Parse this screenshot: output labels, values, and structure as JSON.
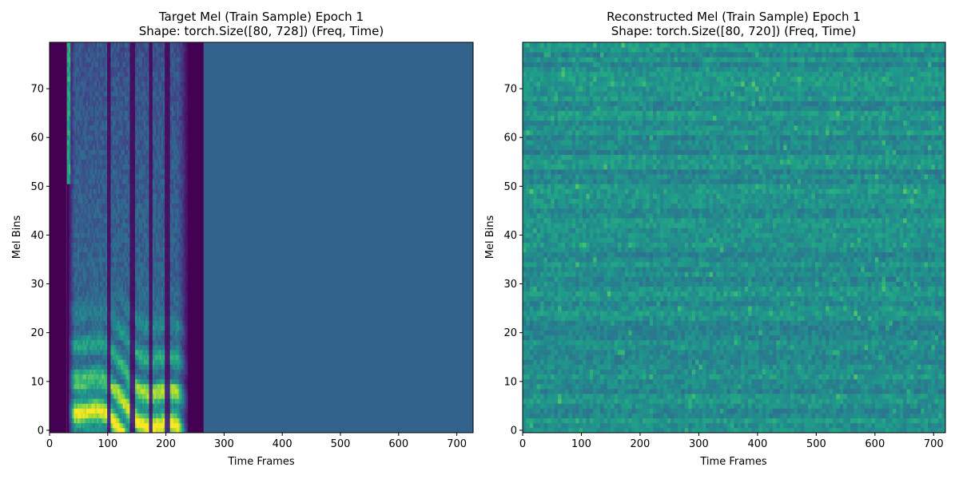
{
  "chart_data": [
    {
      "type": "heatmap",
      "title": "Target Mel (Train Sample) Epoch 1",
      "subtitle": "Shape: torch.Size([80, 728]) (Freq, Time)",
      "xlabel": "Time Frames",
      "ylabel": "Mel Bins",
      "xlim": [
        0,
        728
      ],
      "ylim": [
        -0.5,
        79.5
      ],
      "xticks": [
        0,
        100,
        200,
        300,
        400,
        500,
        600,
        700
      ],
      "yticks": [
        0,
        10,
        20,
        30,
        40,
        50,
        60,
        70
      ],
      "colormap": "viridis",
      "description_of_data": {
        "silence_regions_frames": [
          [
            0,
            30
          ],
          [
            237,
            265
          ]
        ],
        "speech_region_frames": [
          30,
          237
        ],
        "padding_region_frames": [
          265,
          728
        ],
        "padding_color": "#33638d",
        "silence_color": "#440154",
        "energy_concentrated_bins": [
          0,
          30
        ]
      }
    },
    {
      "type": "heatmap",
      "title": "Reconstructed Mel (Train Sample) Epoch 1",
      "subtitle": "Shape: torch.Size([80, 720]) (Freq, Time)",
      "xlabel": "Time Frames",
      "ylabel": "Mel Bins",
      "xlim": [
        0,
        720
      ],
      "ylim": [
        -0.5,
        79.5
      ],
      "xticks": [
        0,
        100,
        200,
        300,
        400,
        500,
        600,
        700
      ],
      "yticks": [
        0,
        10,
        20,
        30,
        40,
        50,
        60,
        70
      ],
      "colormap": "viridis",
      "description_of_data": {
        "pattern": "noise with horizontal banding across mel bins",
        "value_range_colors": [
          "#31688e",
          "#21918c",
          "#5ec962"
        ]
      }
    }
  ]
}
